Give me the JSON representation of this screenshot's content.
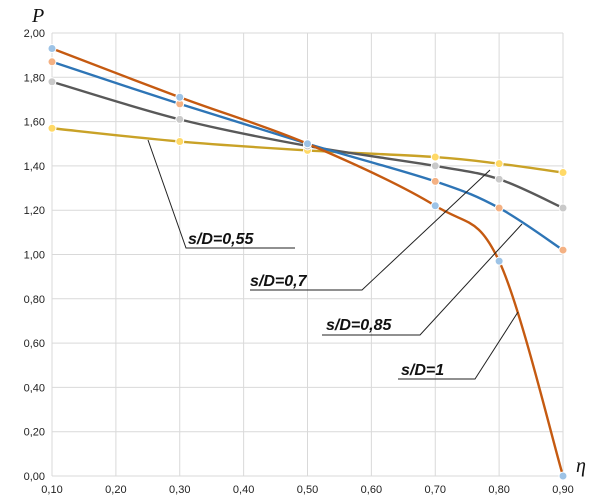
{
  "chart_data": {
    "type": "line",
    "ylabel": "P",
    "xlabel": "η",
    "xlim": [
      0.1,
      0.9
    ],
    "ylim": [
      0,
      2
    ],
    "x_ticks": [
      "0,10",
      "0,20",
      "0,30",
      "0,40",
      "0,50",
      "0,60",
      "0,70",
      "0,80",
      "0,90"
    ],
    "y_ticks": [
      "0,00",
      "0,20",
      "0,40",
      "0,60",
      "0,80",
      "1,00",
      "1,20",
      "1,40",
      "1,60",
      "1,80",
      "2,00"
    ],
    "grid": true,
    "series": [
      {
        "name": "s/D=1",
        "color": "#c55a11",
        "marker_color": "#9dc3e6",
        "points": [
          [
            0.1,
            1.93
          ],
          [
            0.3,
            1.71
          ],
          [
            0.5,
            1.5
          ],
          [
            0.7,
            1.22
          ],
          [
            0.8,
            0.97
          ],
          [
            0.9,
            0.0
          ]
        ]
      },
      {
        "name": "s/D=0,85",
        "color": "#2e75b6",
        "marker_color": "#f4b183",
        "points": [
          [
            0.1,
            1.87
          ],
          [
            0.3,
            1.68
          ],
          [
            0.5,
            1.5
          ],
          [
            0.7,
            1.33
          ],
          [
            0.8,
            1.21
          ],
          [
            0.9,
            1.02
          ]
        ]
      },
      {
        "name": "s/D=0,7",
        "color": "#595959",
        "marker_color": "#c9c9c9",
        "points": [
          [
            0.1,
            1.78
          ],
          [
            0.3,
            1.61
          ],
          [
            0.5,
            1.49
          ],
          [
            0.7,
            1.4
          ],
          [
            0.8,
            1.34
          ],
          [
            0.9,
            1.21
          ]
        ]
      },
      {
        "name": "s/D=0,55",
        "color": "#c9a227",
        "marker_color": "#ffd966",
        "points": [
          [
            0.1,
            1.57
          ],
          [
            0.3,
            1.51
          ],
          [
            0.5,
            1.47
          ],
          [
            0.7,
            1.44
          ],
          [
            0.8,
            1.41
          ],
          [
            0.9,
            1.37
          ]
        ]
      }
    ],
    "annotations": [
      {
        "text": "s/D=0,55",
        "series": 3
      },
      {
        "text": "s/D=0,7",
        "series": 2
      },
      {
        "text": "s/D=0,85",
        "series": 1
      },
      {
        "text": "s/D=1",
        "series": 0
      }
    ]
  }
}
